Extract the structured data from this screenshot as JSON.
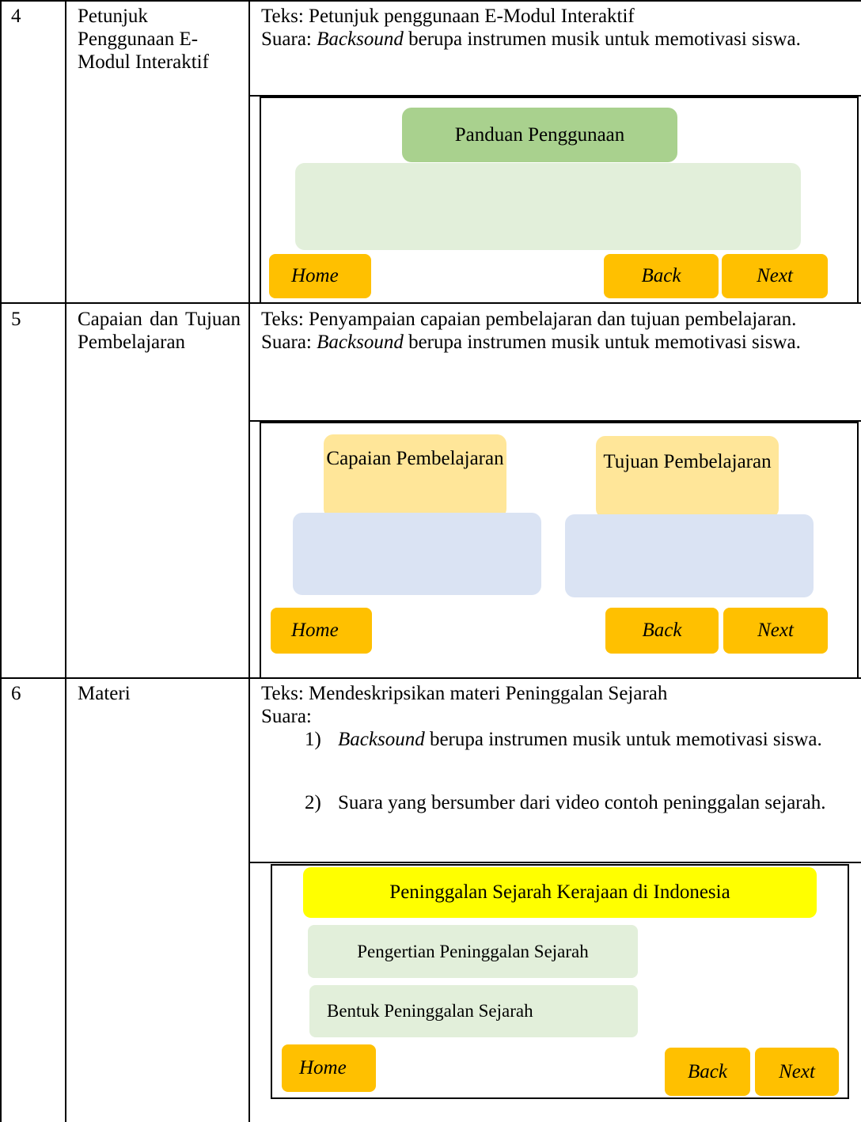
{
  "table": {
    "rows": [
      {
        "number": "4",
        "name": "Petunjuk Penggunaan E-Modul Interaktif",
        "text": "Teks: Petunjuk penggunaan E-Modul Interaktif",
        "sound": {
          "label": "Suara:",
          "emphasis": "Backsound",
          "rest": "berupa instrumen musik untuk memotivasi siswa."
        },
        "mockup": {
          "title": "Panduan Penggunaan",
          "buttons": [
            "Home",
            "Back",
            "Next"
          ]
        }
      },
      {
        "number": "5",
        "name": "Capaian dan Tujuan Pembelajaran",
        "text": "Teks: Penyampaian capaian pembelajaran dan tujuan pembelajaran.",
        "sound": {
          "label": "Suara:",
          "emphasis": "Backsound",
          "rest": "berupa instrumen musik untuk memotivasi siswa."
        },
        "mockup": {
          "panels": [
            "Capaian Pembelajaran",
            "Tujuan Pembelajaran"
          ],
          "buttons": [
            "Home",
            "Back",
            "Next"
          ]
        }
      },
      {
        "number": "6",
        "name": "Materi",
        "text": "Teks: Mendeskripsikan materi Peninggalan Sejarah",
        "sound": {
          "label": "Suara:",
          "items": [
            {
              "marker": "1)",
              "emphasis": "Backsound",
              "rest": "berupa instrumen musik untuk memotivasi siswa."
            },
            {
              "marker": "2)",
              "text": "Suara yang bersumber dari video contoh peninggalan sejarah."
            }
          ]
        },
        "mockup": {
          "title": "Peninggalan Sejarah Kerajaan di Indonesia",
          "menu": [
            "Pengertian Peninggalan Sejarah",
            "Bentuk Peninggalan Sejarah"
          ],
          "buttons": [
            "Home",
            "Back",
            "Next"
          ]
        }
      }
    ]
  }
}
